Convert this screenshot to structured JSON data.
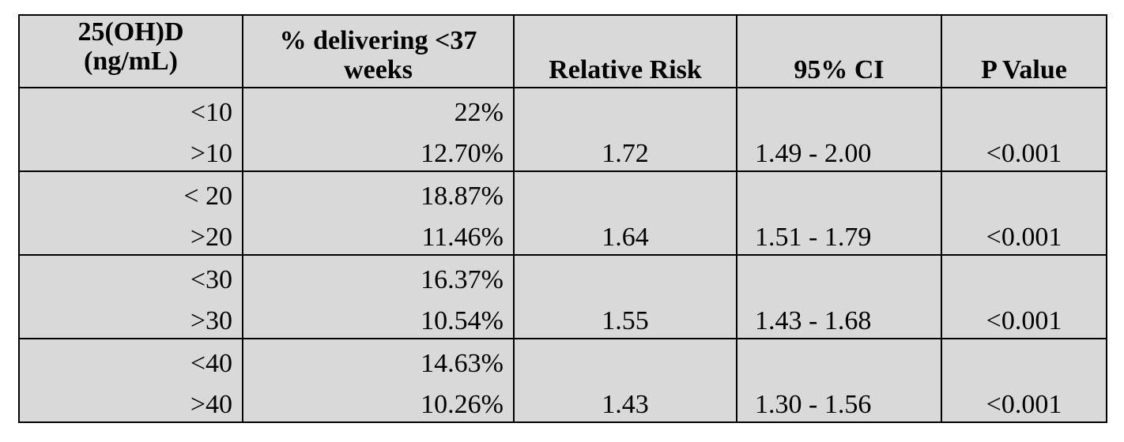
{
  "table": {
    "headers": {
      "col1_line1": "25(OH)D",
      "col1_line2": "(ng/mL)",
      "col2_line1": "% delivering <37",
      "col2_line2": "weeks",
      "col3": "Relative Risk",
      "col4": "95% CI",
      "col5": "P Value"
    },
    "groups": [
      {
        "low": {
          "level": "<10",
          "percent": "22%"
        },
        "high": {
          "level": ">10",
          "percent": "12.70%",
          "relative_risk": "1.72",
          "ci": "1.49 - 2.00",
          "p_value": "<0.001"
        }
      },
      {
        "low": {
          "level": "< 20",
          "percent": "18.87%"
        },
        "high": {
          "level": ">20",
          "percent": "11.46%",
          "relative_risk": "1.64",
          "ci": "1.51 - 1.79",
          "p_value": "<0.001"
        }
      },
      {
        "low": {
          "level": "<30",
          "percent": "16.37%"
        },
        "high": {
          "level": ">30",
          "percent": "10.54%",
          "relative_risk": "1.55",
          "ci": "1.43 - 1.68",
          "p_value": "<0.001"
        }
      },
      {
        "low": {
          "level": "<40",
          "percent": "14.63%"
        },
        "high": {
          "level": ">40",
          "percent": "10.26%",
          "relative_risk": "1.43",
          "ci": "1.30 - 1.56",
          "p_value": "<0.001"
        }
      }
    ]
  }
}
